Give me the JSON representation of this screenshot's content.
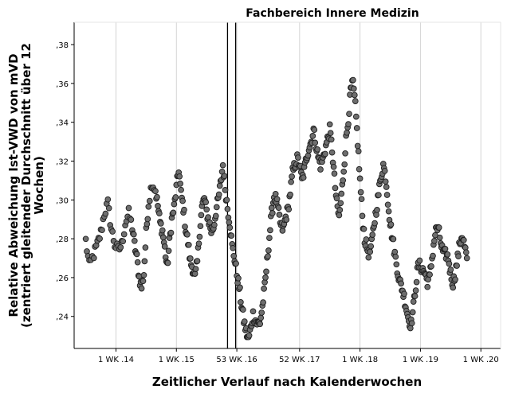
{
  "chart_data": {
    "type": "scatter",
    "title": "Fachbereich Innere Medizin",
    "xlabel": "Zeitlicher Verlauf nach Kalenderwochen",
    "ylabel_lines": [
      "Relative Abweichung Ist-VWD von mVD",
      "(zentriert gleitender Durchschnitt über 12",
      "Wochen)"
    ],
    "ylim": [
      0.2235,
      0.3915
    ],
    "xlim": [
      0,
      367
    ],
    "grid": {
      "vertical": true,
      "horizontal": false
    },
    "y_ticks": [
      {
        "value": 0.24,
        "label": ",24"
      },
      {
        "value": 0.26,
        "label": ",26"
      },
      {
        "value": 0.28,
        "label": ",28"
      },
      {
        "value": 0.3,
        "label": ",30"
      },
      {
        "value": 0.32,
        "label": ",32"
      },
      {
        "value": 0.34,
        "label": ",34"
      },
      {
        "value": 0.36,
        "label": ",36"
      },
      {
        "value": 0.38,
        "label": ",38"
      }
    ],
    "x_ticks": [
      {
        "value": 36,
        "label": "1 WK .14"
      },
      {
        "value": 88,
        "label": "1 WK .15"
      },
      {
        "value": 140,
        "label": "53 WK .16"
      },
      {
        "value": 194,
        "label": "52 WK .17"
      },
      {
        "value": 246,
        "label": "1 WK .18"
      },
      {
        "value": 298,
        "label": "1 WK .19"
      },
      {
        "value": 350,
        "label": "1 WK .20"
      }
    ],
    "reference_lines_x": [
      132,
      139
    ],
    "keypoints": [
      [
        10,
        0.279
      ],
      [
        13,
        0.266
      ],
      [
        17,
        0.272
      ],
      [
        20,
        0.277
      ],
      [
        23,
        0.283
      ],
      [
        26,
        0.293
      ],
      [
        29,
        0.298
      ],
      [
        32,
        0.285
      ],
      [
        35,
        0.277
      ],
      [
        38,
        0.274
      ],
      [
        41,
        0.277
      ],
      [
        44,
        0.288
      ],
      [
        47,
        0.293
      ],
      [
        50,
        0.286
      ],
      [
        52,
        0.277
      ],
      [
        54,
        0.27
      ],
      [
        56,
        0.26
      ],
      [
        58,
        0.255
      ],
      [
        60,
        0.262
      ],
      [
        62,
        0.283
      ],
      [
        64,
        0.298
      ],
      [
        67,
        0.309
      ],
      [
        70,
        0.305
      ],
      [
        72,
        0.297
      ],
      [
        74,
        0.288
      ],
      [
        76,
        0.284
      ],
      [
        78,
        0.275
      ],
      [
        80,
        0.265
      ],
      [
        82,
        0.278
      ],
      [
        84,
        0.29
      ],
      [
        86,
        0.296
      ],
      [
        88,
        0.306
      ],
      [
        90,
        0.316
      ],
      [
        92,
        0.303
      ],
      [
        94,
        0.296
      ],
      [
        96,
        0.285
      ],
      [
        98,
        0.278
      ],
      [
        100,
        0.268
      ],
      [
        102,
        0.265
      ],
      [
        104,
        0.26
      ],
      [
        106,
        0.268
      ],
      [
        108,
        0.284
      ],
      [
        110,
        0.296
      ],
      [
        112,
        0.301
      ],
      [
        114,
        0.294
      ],
      [
        116,
        0.289
      ],
      [
        118,
        0.284
      ],
      [
        120,
        0.286
      ],
      [
        122,
        0.294
      ],
      [
        124,
        0.3
      ],
      [
        126,
        0.308
      ],
      [
        128,
        0.318
      ],
      [
        130,
        0.306
      ],
      [
        132,
        0.296
      ],
      [
        134,
        0.288
      ],
      [
        136,
        0.276
      ],
      [
        138,
        0.27
      ],
      [
        140,
        0.262
      ],
      [
        142,
        0.255
      ],
      [
        144,
        0.246
      ],
      [
        146,
        0.238
      ],
      [
        148,
        0.232
      ],
      [
        150,
        0.228
      ],
      [
        152,
        0.234
      ],
      [
        154,
        0.241
      ],
      [
        156,
        0.238
      ],
      [
        158,
        0.236
      ],
      [
        160,
        0.237
      ],
      [
        162,
        0.245
      ],
      [
        164,
        0.255
      ],
      [
        166,
        0.268
      ],
      [
        168,
        0.281
      ],
      [
        170,
        0.293
      ],
      [
        172,
        0.302
      ],
      [
        174,
        0.3
      ],
      [
        176,
        0.293
      ],
      [
        178,
        0.286
      ],
      [
        180,
        0.285
      ],
      [
        182,
        0.291
      ],
      [
        184,
        0.295
      ],
      [
        186,
        0.304
      ],
      [
        188,
        0.314
      ],
      [
        190,
        0.318
      ],
      [
        192,
        0.321
      ],
      [
        194,
        0.318
      ],
      [
        196,
        0.31
      ],
      [
        198,
        0.315
      ],
      [
        200,
        0.322
      ],
      [
        202,
        0.327
      ],
      [
        204,
        0.33
      ],
      [
        206,
        0.336
      ],
      [
        208,
        0.329
      ],
      [
        210,
        0.322
      ],
      [
        212,
        0.318
      ],
      [
        214,
        0.321
      ],
      [
        216,
        0.326
      ],
      [
        218,
        0.331
      ],
      [
        220,
        0.336
      ],
      [
        222,
        0.326
      ],
      [
        224,
        0.311
      ],
      [
        226,
        0.298
      ],
      [
        228,
        0.291
      ],
      [
        230,
        0.302
      ],
      [
        232,
        0.316
      ],
      [
        234,
        0.331
      ],
      [
        236,
        0.342
      ],
      [
        238,
        0.356
      ],
      [
        240,
        0.36
      ],
      [
        242,
        0.348
      ],
      [
        244,
        0.33
      ],
      [
        246,
        0.31
      ],
      [
        248,
        0.292
      ],
      [
        250,
        0.28
      ],
      [
        252,
        0.275
      ],
      [
        254,
        0.272
      ],
      [
        256,
        0.277
      ],
      [
        258,
        0.287
      ],
      [
        260,
        0.295
      ],
      [
        262,
        0.303
      ],
      [
        264,
        0.312
      ],
      [
        266,
        0.318
      ],
      [
        268,
        0.312
      ],
      [
        270,
        0.3
      ],
      [
        272,
        0.288
      ],
      [
        274,
        0.28
      ],
      [
        276,
        0.272
      ],
      [
        278,
        0.265
      ],
      [
        280,
        0.258
      ],
      [
        282,
        0.255
      ],
      [
        284,
        0.25
      ],
      [
        286,
        0.244
      ],
      [
        288,
        0.238
      ],
      [
        290,
        0.236
      ],
      [
        292,
        0.245
      ],
      [
        294,
        0.256
      ],
      [
        296,
        0.266
      ],
      [
        298,
        0.266
      ],
      [
        300,
        0.264
      ],
      [
        302,
        0.262
      ],
      [
        304,
        0.258
      ],
      [
        306,
        0.26
      ],
      [
        308,
        0.27
      ],
      [
        310,
        0.28
      ],
      [
        312,
        0.286
      ],
      [
        314,
        0.283
      ],
      [
        316,
        0.276
      ],
      [
        318,
        0.272
      ],
      [
        320,
        0.272
      ],
      [
        322,
        0.27
      ],
      [
        324,
        0.262
      ],
      [
        326,
        0.257
      ],
      [
        328,
        0.262
      ],
      [
        330,
        0.27
      ],
      [
        332,
        0.278
      ],
      [
        334,
        0.282
      ],
      [
        336,
        0.276
      ],
      [
        338,
        0.27
      ]
    ]
  }
}
